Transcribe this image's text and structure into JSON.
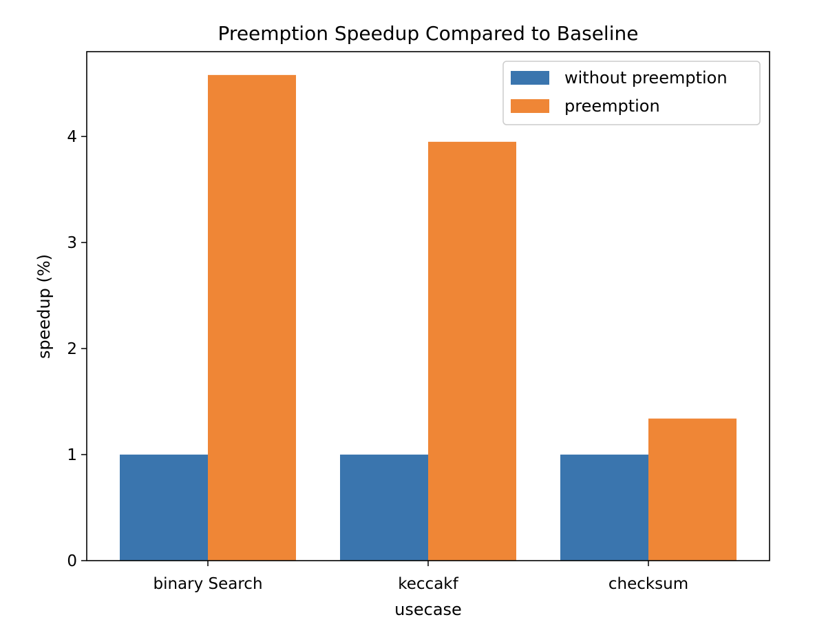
{
  "chart_data": {
    "type": "bar",
    "title": "Preemption Speedup Compared to Baseline",
    "xlabel": "usecase",
    "ylabel": "speedup (%)",
    "categories": [
      "binary Search",
      "keccakf",
      "checksum"
    ],
    "series": [
      {
        "name": "without preemption",
        "color": "#3a75ae",
        "values": [
          1.0,
          1.0,
          1.0
        ]
      },
      {
        "name": "preemption",
        "color": "#ef8636",
        "values": [
          4.58,
          3.95,
          1.34
        ]
      }
    ],
    "ylim": [
      0,
      4.8
    ],
    "yticks": [
      0,
      1,
      2,
      3,
      4
    ],
    "grid": false,
    "legend": "top-right"
  }
}
